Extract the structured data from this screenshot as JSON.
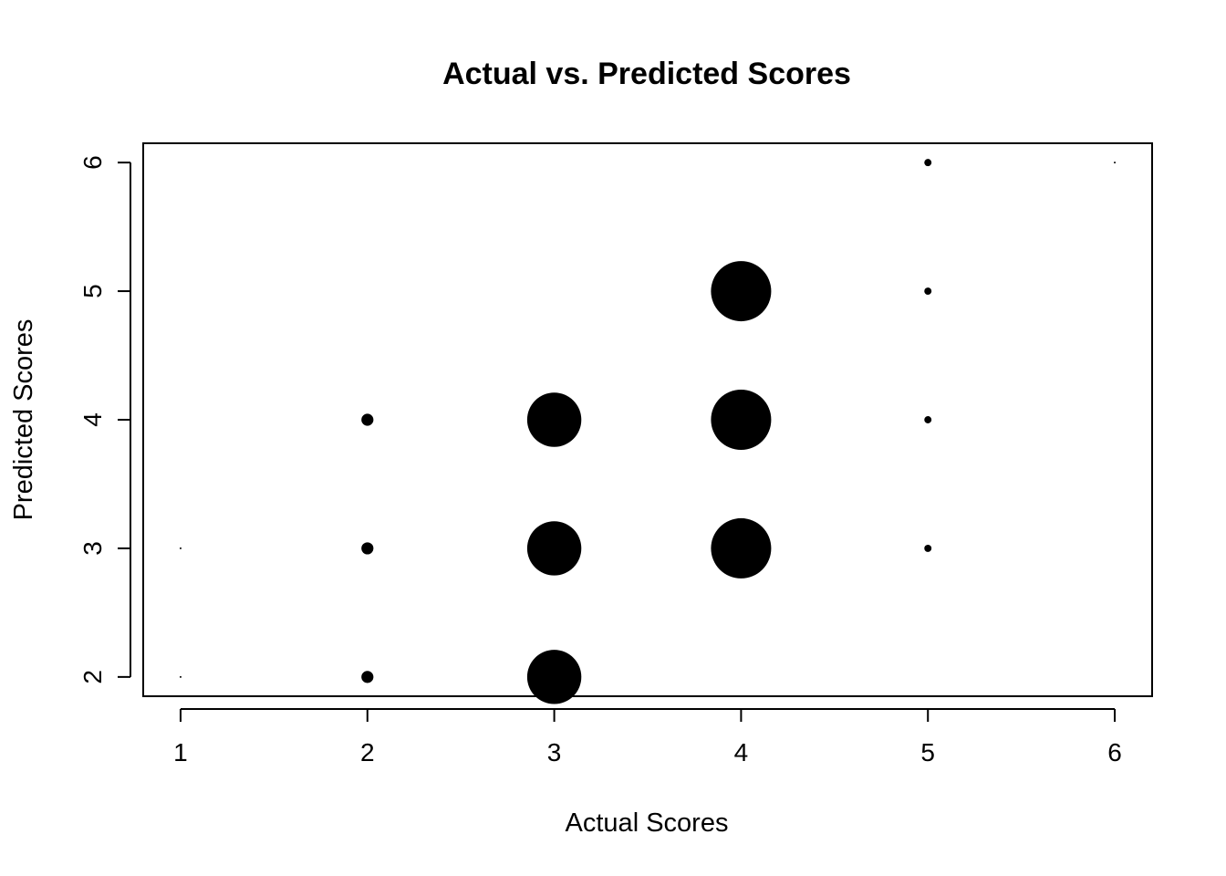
{
  "chart_data": {
    "type": "scatter",
    "title": "Actual vs. Predicted Scores",
    "xlabel": "Actual Scores",
    "ylabel": "Predicted Scores",
    "xlim": [
      0.8,
      6.2
    ],
    "ylim": [
      1.85,
      6.15
    ],
    "xticks": [
      1,
      2,
      3,
      4,
      5,
      6
    ],
    "yticks": [
      2,
      3,
      4,
      5,
      6
    ],
    "point_size_encodes": "relative frequency",
    "points": [
      {
        "x": 1,
        "y": 2,
        "size": 0.03
      },
      {
        "x": 1,
        "y": 3,
        "size": 0.03
      },
      {
        "x": 2,
        "y": 2,
        "size": 0.2
      },
      {
        "x": 2,
        "y": 3,
        "size": 0.2
      },
      {
        "x": 2,
        "y": 4,
        "size": 0.2
      },
      {
        "x": 3,
        "y": 2,
        "size": 0.9
      },
      {
        "x": 3,
        "y": 3,
        "size": 0.9
      },
      {
        "x": 3,
        "y": 4,
        "size": 0.9
      },
      {
        "x": 4,
        "y": 3,
        "size": 1.0
      },
      {
        "x": 4,
        "y": 4,
        "size": 1.0
      },
      {
        "x": 4,
        "y": 5,
        "size": 1.0
      },
      {
        "x": 5,
        "y": 3,
        "size": 0.12
      },
      {
        "x": 5,
        "y": 4,
        "size": 0.12
      },
      {
        "x": 5,
        "y": 5,
        "size": 0.12
      },
      {
        "x": 5,
        "y": 6,
        "size": 0.12
      },
      {
        "x": 6,
        "y": 6,
        "size": 0.03
      }
    ],
    "grid": false,
    "legend": "none"
  }
}
